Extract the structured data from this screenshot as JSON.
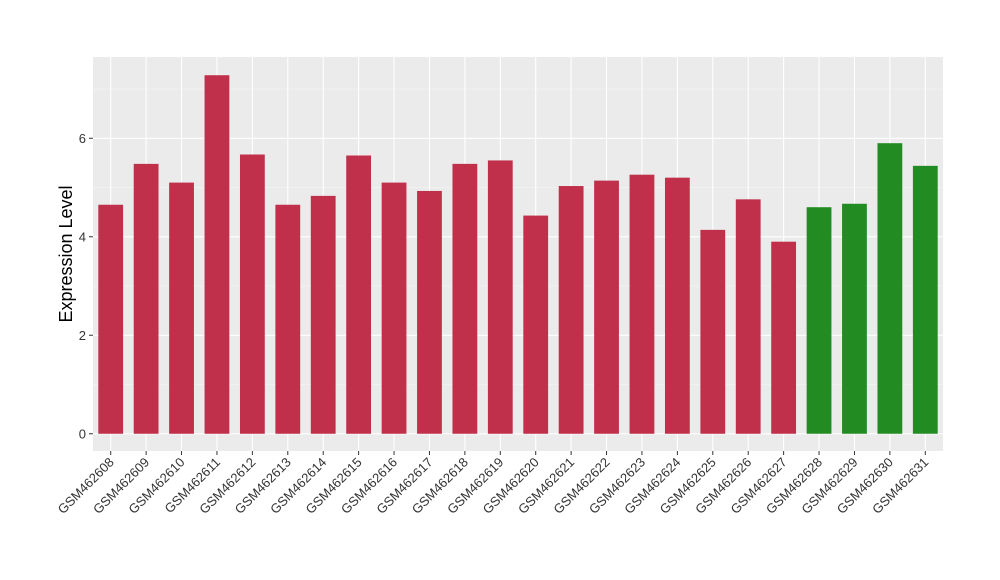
{
  "chart_data": {
    "type": "bar",
    "title": "",
    "xlabel": "",
    "ylabel": "Expression Level",
    "ylim": [
      -0.35,
      7.65
    ],
    "yticks": [
      0,
      2,
      4,
      6
    ],
    "grid": true,
    "legend": "none",
    "categories": [
      "GSM462608",
      "GSM462609",
      "GSM462610",
      "GSM462611",
      "GSM462612",
      "GSM462613",
      "GSM462614",
      "GSM462615",
      "GSM462616",
      "GSM462617",
      "GSM462618",
      "GSM462619",
      "GSM462620",
      "GSM462621",
      "GSM462622",
      "GSM462623",
      "GSM462624",
      "GSM462625",
      "GSM462626",
      "GSM462627",
      "GSM462628",
      "GSM462629",
      "GSM462630",
      "GSM462631"
    ],
    "values": [
      4.65,
      5.48,
      5.1,
      7.28,
      5.67,
      4.65,
      4.83,
      5.65,
      5.1,
      4.93,
      5.48,
      5.55,
      4.43,
      5.03,
      5.14,
      5.26,
      5.2,
      4.14,
      4.76,
      3.9,
      4.6,
      4.67,
      5.9,
      5.44
    ],
    "bar_colors": [
      "#C0304A",
      "#C0304A",
      "#C0304A",
      "#C0304A",
      "#C0304A",
      "#C0304A",
      "#C0304A",
      "#C0304A",
      "#C0304A",
      "#C0304A",
      "#C0304A",
      "#C0304A",
      "#C0304A",
      "#C0304A",
      "#C0304A",
      "#C0304A",
      "#C0304A",
      "#C0304A",
      "#C0304A",
      "#C0304A",
      "#228B22",
      "#228B22",
      "#228B22",
      "#228B22"
    ]
  },
  "colors": {
    "panel_background": "#EBEBEB",
    "grid_major": "#FFFFFF",
    "grid_minor": "#F5F5F5",
    "tick_color": "#333333"
  }
}
